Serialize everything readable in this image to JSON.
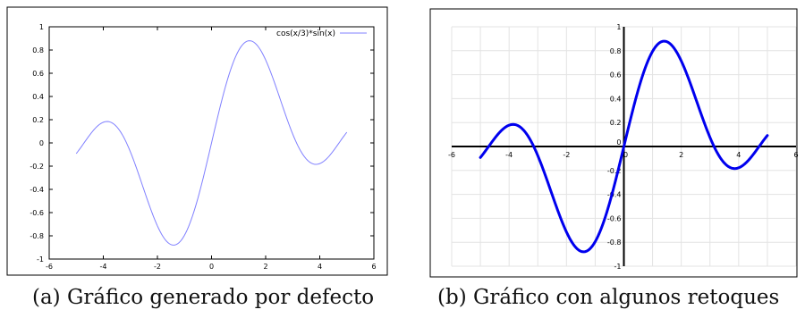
{
  "chart_data": [
    {
      "type": "line",
      "caption": "(a) Gráfico generado por defecto",
      "series": [
        {
          "name": "cos(x/3)*sin(x)",
          "color": "#8080ff",
          "x": [],
          "y": []
        }
      ],
      "function": "cos(x/3)*sin(x)",
      "domain": [
        -5,
        5
      ],
      "xlim": [
        -6,
        6
      ],
      "ylim": [
        -1,
        1
      ],
      "xticks": [
        -6,
        -4,
        -2,
        0,
        2,
        4,
        6
      ],
      "yticks": [
        -1,
        -0.8,
        -0.6,
        -0.4,
        -0.2,
        0,
        0.2,
        0.4,
        0.6,
        0.8,
        1
      ],
      "xtick_labels": [
        "-6",
        "-4",
        "-2",
        "0",
        "2",
        "4",
        "6"
      ],
      "ytick_labels": [
        "-1",
        "-0.8",
        "-0.6",
        "-0.4",
        "-0.2",
        "0",
        "0.2",
        "0.4",
        "0.6",
        "0.8",
        "1"
      ],
      "legend": "top-right",
      "grid": false
    },
    {
      "type": "line",
      "caption": "(b) Gráfico con algunos retoques",
      "series": [
        {
          "color": "#0000ee",
          "x": [],
          "y": []
        }
      ],
      "function": "cos(x/3)*sin(x)",
      "domain": [
        -5,
        5
      ],
      "xlim": [
        -6,
        6
      ],
      "ylim": [
        -1,
        1
      ],
      "xticks": [
        -6,
        -4,
        -2,
        0,
        2,
        4,
        6
      ],
      "yticks": [
        -1,
        -0.8,
        -0.6,
        -0.4,
        -0.2,
        0,
        0.2,
        0.4,
        0.6,
        0.8,
        1
      ],
      "xtick_labels": [
        "-6",
        "-4",
        "-2",
        "0",
        "2",
        "4",
        "6"
      ],
      "ytick_labels": [
        "-1",
        "-0.8",
        "-0.6",
        "-0.4",
        "-0.2",
        "0",
        "0.2",
        "0.4",
        "0.6",
        "0.8",
        "1"
      ],
      "legend": "none",
      "grid": true,
      "axes_through_origin": true
    }
  ]
}
